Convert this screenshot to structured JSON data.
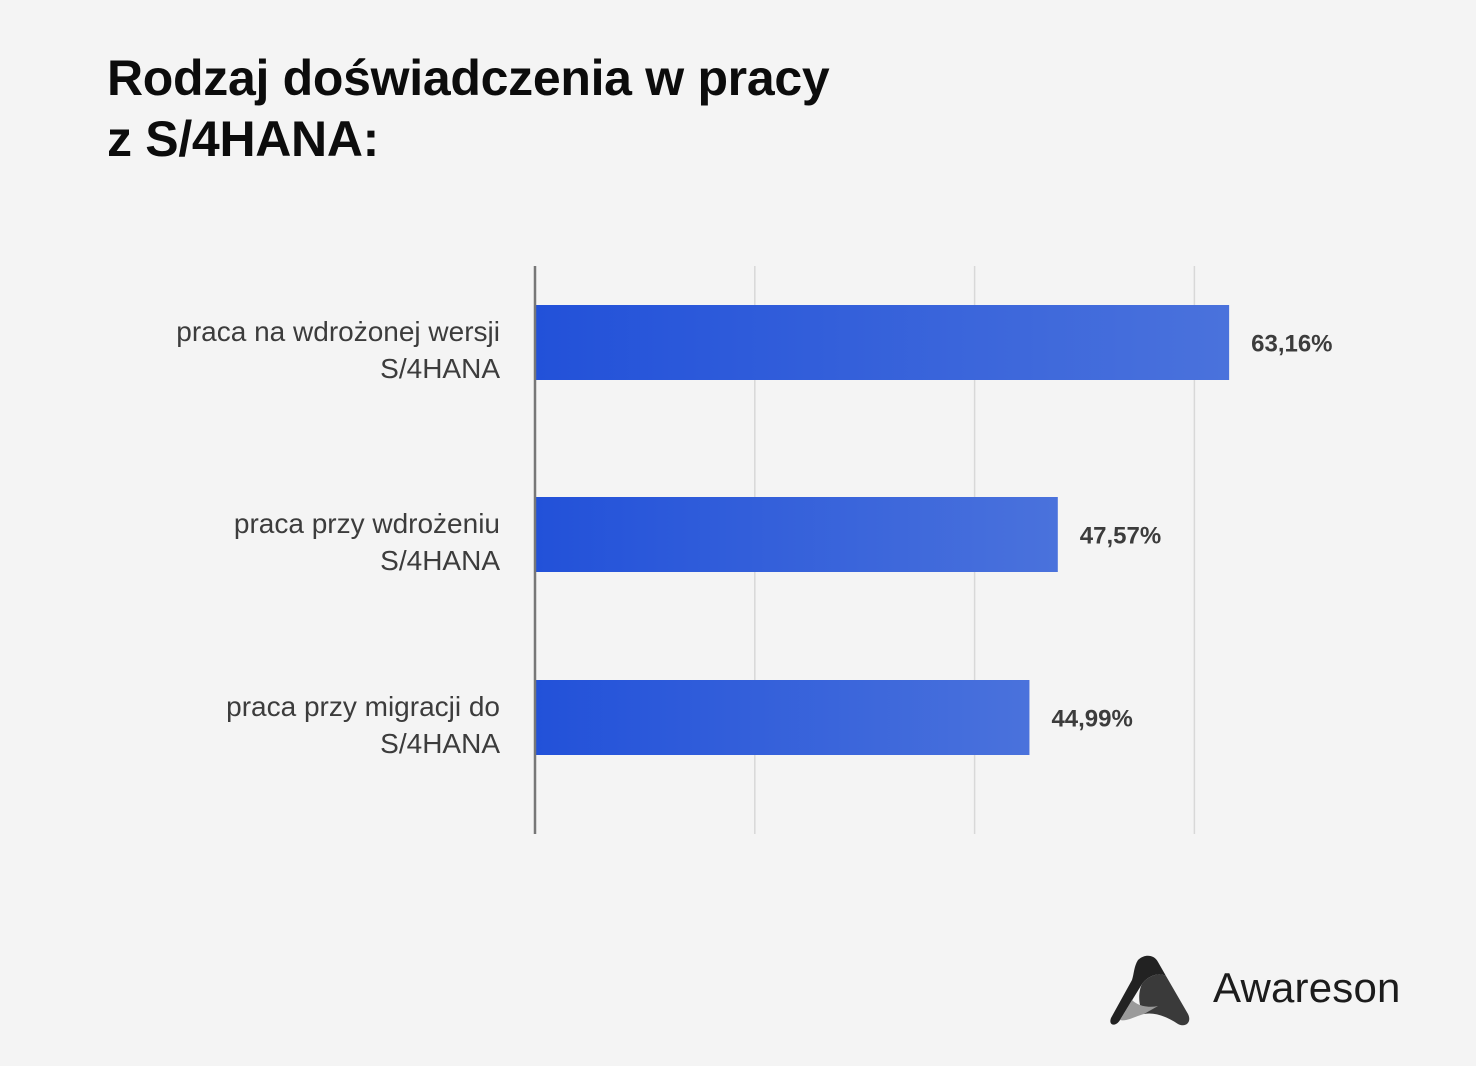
{
  "title_lines": [
    "Rodzaj doświadczenia w pracy",
    "z S/4HANA:"
  ],
  "colors": {
    "bar_start": "#2251d9",
    "bar_end": "#4a72dc",
    "grid": "#d8d8d8",
    "axis": "#777777",
    "text": "#3c3c3c"
  },
  "chart_data": {
    "type": "bar",
    "orientation": "horizontal",
    "categories": [
      [
        "praca na wdrożonej wersji",
        "S/4HANA"
      ],
      [
        "praca przy wdrożeniu",
        "S/4HANA"
      ],
      [
        "praca przy migracji do",
        "S/4HANA"
      ]
    ],
    "values": [
      63.16,
      47.57,
      44.99
    ],
    "value_labels": [
      "63,16%",
      "47,57%",
      "44,99%"
    ],
    "xlim": [
      0,
      60
    ],
    "grid": "vertical",
    "xlabel": "",
    "ylabel": ""
  },
  "logo": {
    "text": "Awareson",
    "icon": "awareson-logo-icon"
  }
}
